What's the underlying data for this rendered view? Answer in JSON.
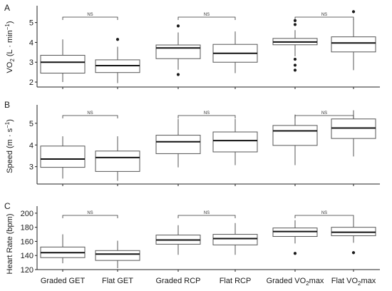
{
  "categories": [
    "Graded GET",
    "Flat GET",
    "Graded RCP",
    "Flat RCP",
    "Graded VO2max",
    "Flat VO2max"
  ],
  "chart_data": [
    {
      "type": "box",
      "panel_label": "A",
      "ylabel": "VO2 (L·min-1)",
      "ylim": [
        1.75,
        5.85
      ],
      "yticks": [
        2,
        3,
        4,
        5
      ],
      "boxes": [
        {
          "category": "Graded GET",
          "whisker_low": 2.0,
          "q1": 2.45,
          "median": 3.0,
          "q3": 3.35,
          "whisker_high": 4.15,
          "outliers": []
        },
        {
          "category": "Flat GET",
          "whisker_low": 1.95,
          "q1": 2.48,
          "median": 2.83,
          "q3": 3.12,
          "whisker_high": 3.78,
          "outliers": [
            4.15
          ]
        },
        {
          "category": "Graded RCP",
          "whisker_low": 2.62,
          "q1": 3.18,
          "median": 3.72,
          "q3": 3.87,
          "whisker_high": 4.5,
          "outliers": [
            2.38,
            4.83
          ]
        },
        {
          "category": "Flat RCP",
          "whisker_low": 2.45,
          "q1": 3.0,
          "median": 3.45,
          "q3": 3.9,
          "whisker_high": 4.55,
          "outliers": []
        },
        {
          "category": "Graded VO2max",
          "whisker_low": 3.3,
          "q1": 3.88,
          "median": 4.02,
          "q3": 4.2,
          "whisker_high": 4.62,
          "outliers": [
            2.6,
            2.85,
            3.15,
            4.9,
            5.1
          ]
        },
        {
          "category": "Flat VO2max",
          "whisker_low": 2.6,
          "q1": 3.52,
          "median": 3.97,
          "q3": 4.28,
          "whisker_high": 5.2,
          "outliers": [
            5.55
          ]
        }
      ],
      "comparisons": [
        {
          "from": 0,
          "to": 1,
          "label": "NS"
        },
        {
          "from": 2,
          "to": 3,
          "label": "NS"
        },
        {
          "from": 4,
          "to": 5,
          "label": "NS"
        }
      ]
    },
    {
      "type": "box",
      "panel_label": "B",
      "ylabel": "Speed (m·s-1)",
      "ylim": [
        2.2,
        5.85
      ],
      "yticks": [
        3,
        4,
        5
      ],
      "boxes": [
        {
          "category": "Graded GET",
          "whisker_low": 2.45,
          "q1": 2.97,
          "median": 3.35,
          "q3": 3.95,
          "whisker_high": 4.4,
          "outliers": []
        },
        {
          "category": "Flat GET",
          "whisker_low": 2.35,
          "q1": 2.78,
          "median": 3.42,
          "q3": 3.72,
          "whisker_high": 4.4,
          "outliers": []
        },
        {
          "category": "Graded RCP",
          "whisker_low": 2.97,
          "q1": 3.6,
          "median": 4.15,
          "q3": 4.45,
          "whisker_high": 5.2,
          "outliers": []
        },
        {
          "category": "Flat RCP",
          "whisker_low": 3.07,
          "q1": 3.68,
          "median": 4.2,
          "q3": 4.6,
          "whisker_high": 5.2,
          "outliers": []
        },
        {
          "category": "Graded VO2max",
          "whisker_low": 3.07,
          "q1": 3.98,
          "median": 4.65,
          "q3": 4.9,
          "whisker_high": 5.4,
          "outliers": []
        },
        {
          "category": "Flat VO2max",
          "whisker_low": 3.47,
          "q1": 4.3,
          "median": 4.78,
          "q3": 5.2,
          "whisker_high": 5.6,
          "outliers": []
        }
      ],
      "comparisons": [
        {
          "from": 0,
          "to": 1,
          "label": "NS"
        },
        {
          "from": 2,
          "to": 3,
          "label": "NS"
        },
        {
          "from": 4,
          "to": 5,
          "label": "NS"
        }
      ]
    },
    {
      "type": "box",
      "panel_label": "C",
      "ylabel": "Heart Rate (bpm)",
      "ylim": [
        120,
        210
      ],
      "yticks": [
        120,
        140,
        160,
        180,
        200
      ],
      "boxes": [
        {
          "category": "Graded GET",
          "whisker_low": 129,
          "q1": 137,
          "median": 144,
          "q3": 152,
          "whisker_high": 170,
          "outliers": []
        },
        {
          "category": "Flat GET",
          "whisker_low": 122,
          "q1": 133,
          "median": 142,
          "q3": 147,
          "whisker_high": 161,
          "outliers": []
        },
        {
          "category": "Graded RCP",
          "whisker_low": 141,
          "q1": 156,
          "median": 162,
          "q3": 169,
          "whisker_high": 183,
          "outliers": []
        },
        {
          "category": "Flat RCP",
          "whisker_low": 141,
          "q1": 155,
          "median": 164,
          "q3": 170,
          "whisker_high": 186,
          "outliers": []
        },
        {
          "category": "Graded VO2max",
          "whisker_low": 157,
          "q1": 167,
          "median": 174,
          "q3": 179,
          "whisker_high": 190,
          "outliers": [
            143
          ]
        },
        {
          "category": "Flat VO2max",
          "whisker_low": 158,
          "q1": 168,
          "median": 173,
          "q3": 180,
          "whisker_high": 193,
          "outliers": [
            144
          ]
        }
      ],
      "comparisons": [
        {
          "from": 0,
          "to": 1,
          "label": "NS"
        },
        {
          "from": 2,
          "to": 3,
          "label": "NS"
        },
        {
          "from": 4,
          "to": 5,
          "label": "NS"
        }
      ]
    }
  ],
  "labels": {
    "panel_a": "A",
    "panel_b": "B",
    "panel_c": "C",
    "ylabel_a": "VO2 (L·min-1)",
    "ylabel_b": "Speed (m·s-1)",
    "ylabel_c": "Heart Rate (bpm)"
  },
  "colors": {
    "box_fill": "#ffffff",
    "box_stroke": "#555555",
    "median": "#111111",
    "axis": "#222222",
    "text": "#1a1a1a"
  }
}
